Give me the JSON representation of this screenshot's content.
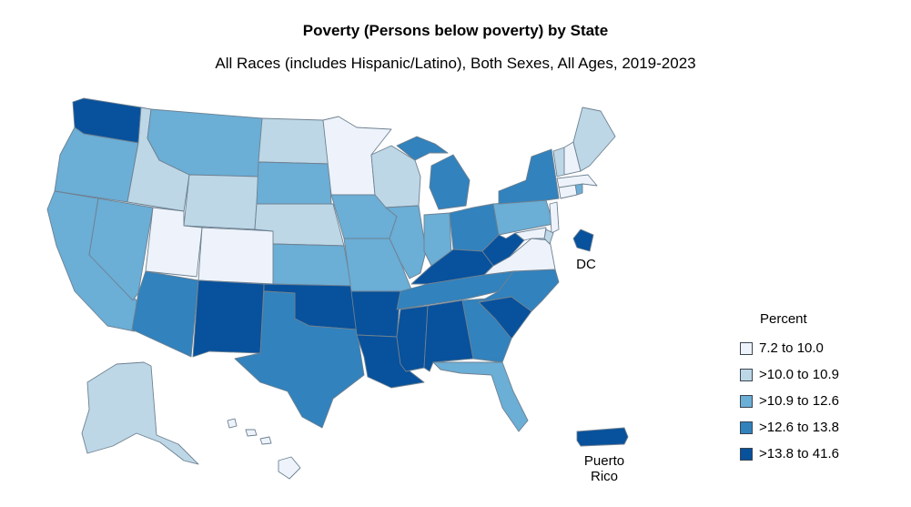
{
  "title": "Poverty (Persons below poverty) by State",
  "subtitle": "All Races (includes Hispanic/Latino), Both Sexes, All Ages, 2019-2023",
  "legend": {
    "title": "Percent",
    "classes": [
      {
        "label": "7.2 to 10.0",
        "color": "#eef3fb"
      },
      {
        "label": ">10.0 to 10.9",
        "color": "#bdd7e7"
      },
      {
        "label": ">10.9 to 12.6",
        "color": "#6baed6"
      },
      {
        "label": ">12.6 to 13.8",
        "color": "#3182bd"
      },
      {
        "label": ">13.8 to 41.6",
        "color": "#08519c"
      }
    ]
  },
  "labels": {
    "dc": "DC",
    "pr_line1": "Puerto",
    "pr_line2": "Rico"
  },
  "states": {
    "WA": 4,
    "OR": 2,
    "CA": 2,
    "NV": 2,
    "ID": 1,
    "MT": 2,
    "WY": 1,
    "UT": 0,
    "CO": 0,
    "AZ": 3,
    "NM": 4,
    "ND": 1,
    "SD": 2,
    "NE": 1,
    "KS": 2,
    "OK": 4,
    "TX": 3,
    "MN": 0,
    "IA": 2,
    "MO": 2,
    "AR": 4,
    "LA": 4,
    "WI": 1,
    "IL": 2,
    "MI": 3,
    "IN": 2,
    "OH": 3,
    "KY": 4,
    "TN": 3,
    "MS": 4,
    "AL": 4,
    "GA": 3,
    "FL": 2,
    "SC": 4,
    "NC": 3,
    "VA": 0,
    "WV": 4,
    "PA": 2,
    "NY": 3,
    "NJ": 0,
    "DE": 1,
    "MD": 0,
    "CT": 0,
    "RI": 2,
    "MA": 0,
    "VT": 1,
    "NH": 0,
    "ME": 1,
    "AK": 1,
    "HI": 0,
    "DC": 4,
    "PR": 4
  }
}
